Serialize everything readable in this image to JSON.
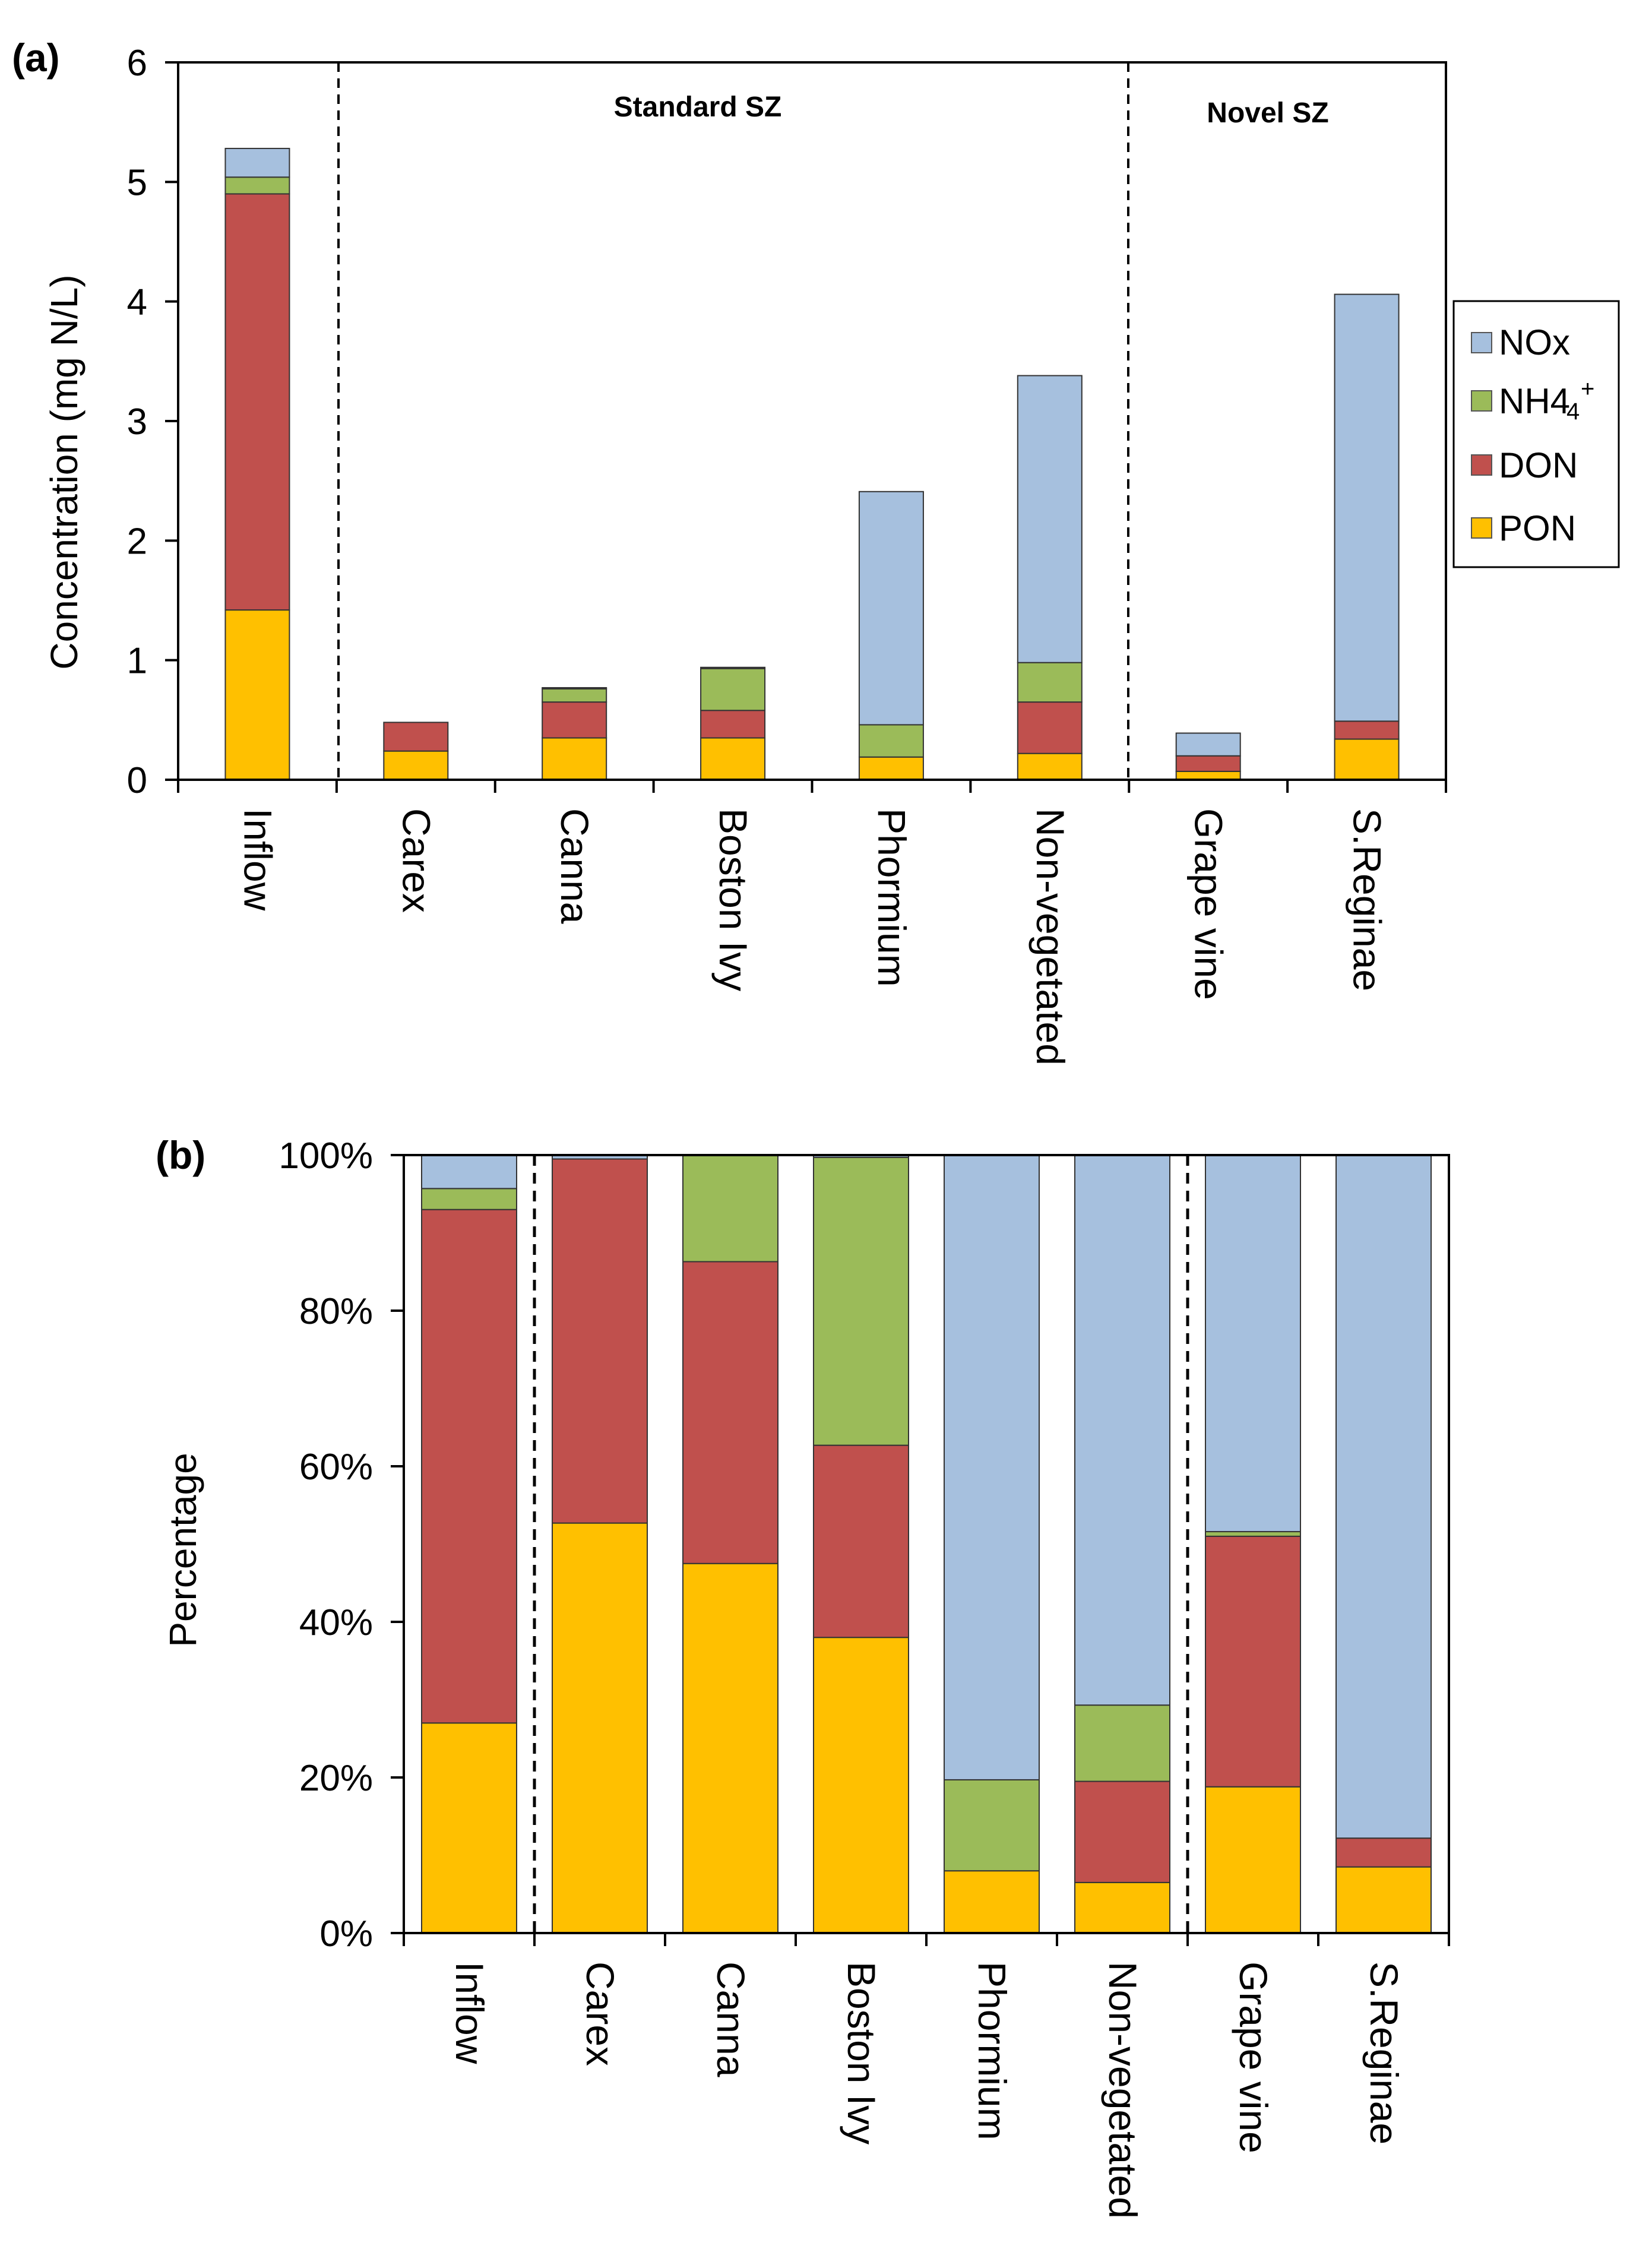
{
  "colors": {
    "NOx": "#A6C0DE",
    "NH4": "#9BBB59",
    "DON": "#C0504D",
    "PON": "#FFC000"
  },
  "legend": [
    {
      "key": "NOx",
      "label": "NOx"
    },
    {
      "key": "NH4",
      "label": "NH4",
      "sub": "4",
      "sup": "+"
    },
    {
      "key": "DON",
      "label": "DON"
    },
    {
      "key": "PON",
      "label": "PON"
    }
  ],
  "chart_data": [
    {
      "type": "bar",
      "stacked": true,
      "panel_label": "(a)",
      "ylabel": "Concentration (mg N/L)",
      "ylim": [
        0,
        6
      ],
      "yticks": [
        "0",
        "1",
        "2",
        "3",
        "4",
        "5",
        "6"
      ],
      "group_labels": [
        "Standard SZ",
        "Novel SZ"
      ],
      "categories": [
        "Inflow",
        "Carex",
        "Canna",
        "Boston Ivy",
        "Phormium",
        "Non-vegetated",
        "Grape vine",
        "S.Reginae"
      ],
      "series": [
        {
          "name": "PON",
          "values": [
            1.42,
            0.24,
            0.35,
            0.35,
            0.19,
            0.22,
            0.07,
            0.34
          ]
        },
        {
          "name": "DON",
          "values": [
            3.48,
            0.24,
            0.3,
            0.23,
            0.0,
            0.43,
            0.13,
            0.15
          ]
        },
        {
          "name": "NH4+",
          "values": [
            0.14,
            0.0,
            0.11,
            0.35,
            0.27,
            0.33,
            0.0,
            0.0
          ]
        },
        {
          "name": "NOx",
          "values": [
            0.24,
            0.0,
            0.01,
            0.01,
            1.95,
            2.4,
            0.19,
            3.57
          ]
        }
      ]
    },
    {
      "type": "bar",
      "stacked": true,
      "panel_label": "(b)",
      "ylabel": "Percentage",
      "ylim": [
        0,
        100
      ],
      "yticks": [
        "0%",
        "20%",
        "40%",
        "60%",
        "80%",
        "100%"
      ],
      "categories": [
        "Inflow",
        "Carex",
        "Canna",
        "Boston Ivy",
        "Phormium",
        "Non-vegetated",
        "Grape vine",
        "S.Reginae"
      ],
      "series": [
        {
          "name": "PON",
          "values": [
            27.0,
            52.7,
            47.5,
            38.0,
            8.0,
            6.5,
            18.8,
            8.5
          ]
        },
        {
          "name": "DON",
          "values": [
            66.0,
            46.8,
            38.8,
            24.7,
            0.0,
            13.0,
            32.2,
            3.7
          ]
        },
        {
          "name": "NH4+",
          "values": [
            2.7,
            0.0,
            13.7,
            37.0,
            11.7,
            9.8,
            0.6,
            0.0
          ]
        },
        {
          "name": "NOx",
          "values": [
            4.3,
            0.5,
            0.0,
            0.3,
            80.3,
            70.7,
            48.4,
            87.8
          ]
        }
      ]
    }
  ]
}
